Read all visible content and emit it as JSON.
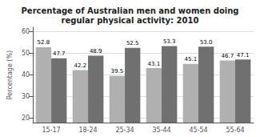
{
  "chart_data": {
    "type": "bar",
    "title": "Percentage of Australian men and women doing\nregular physical activity: 2010",
    "ylabel": "Percentage (%)",
    "categories": [
      "15-17",
      "18-24",
      "25-34",
      "35-44",
      "45-54",
      "55-64"
    ],
    "series": [
      {
        "color": "#b0b0b0",
        "values": [
          52.8,
          42.2,
          39.5,
          43.1,
          45.1,
          46.7
        ]
      },
      {
        "color": "#707070",
        "values": [
          47.7,
          48.9,
          52.5,
          53.3,
          53.0,
          47.1
        ],
        "value_labels": [
          "47.7",
          "48.9",
          "52.5",
          "53.3",
          "53.0",
          "47.1"
        ]
      }
    ],
    "ylim": [
      18,
      62
    ],
    "yticks": [
      20,
      30,
      40,
      50,
      60
    ],
    "grid": true,
    "data_labels": true
  }
}
